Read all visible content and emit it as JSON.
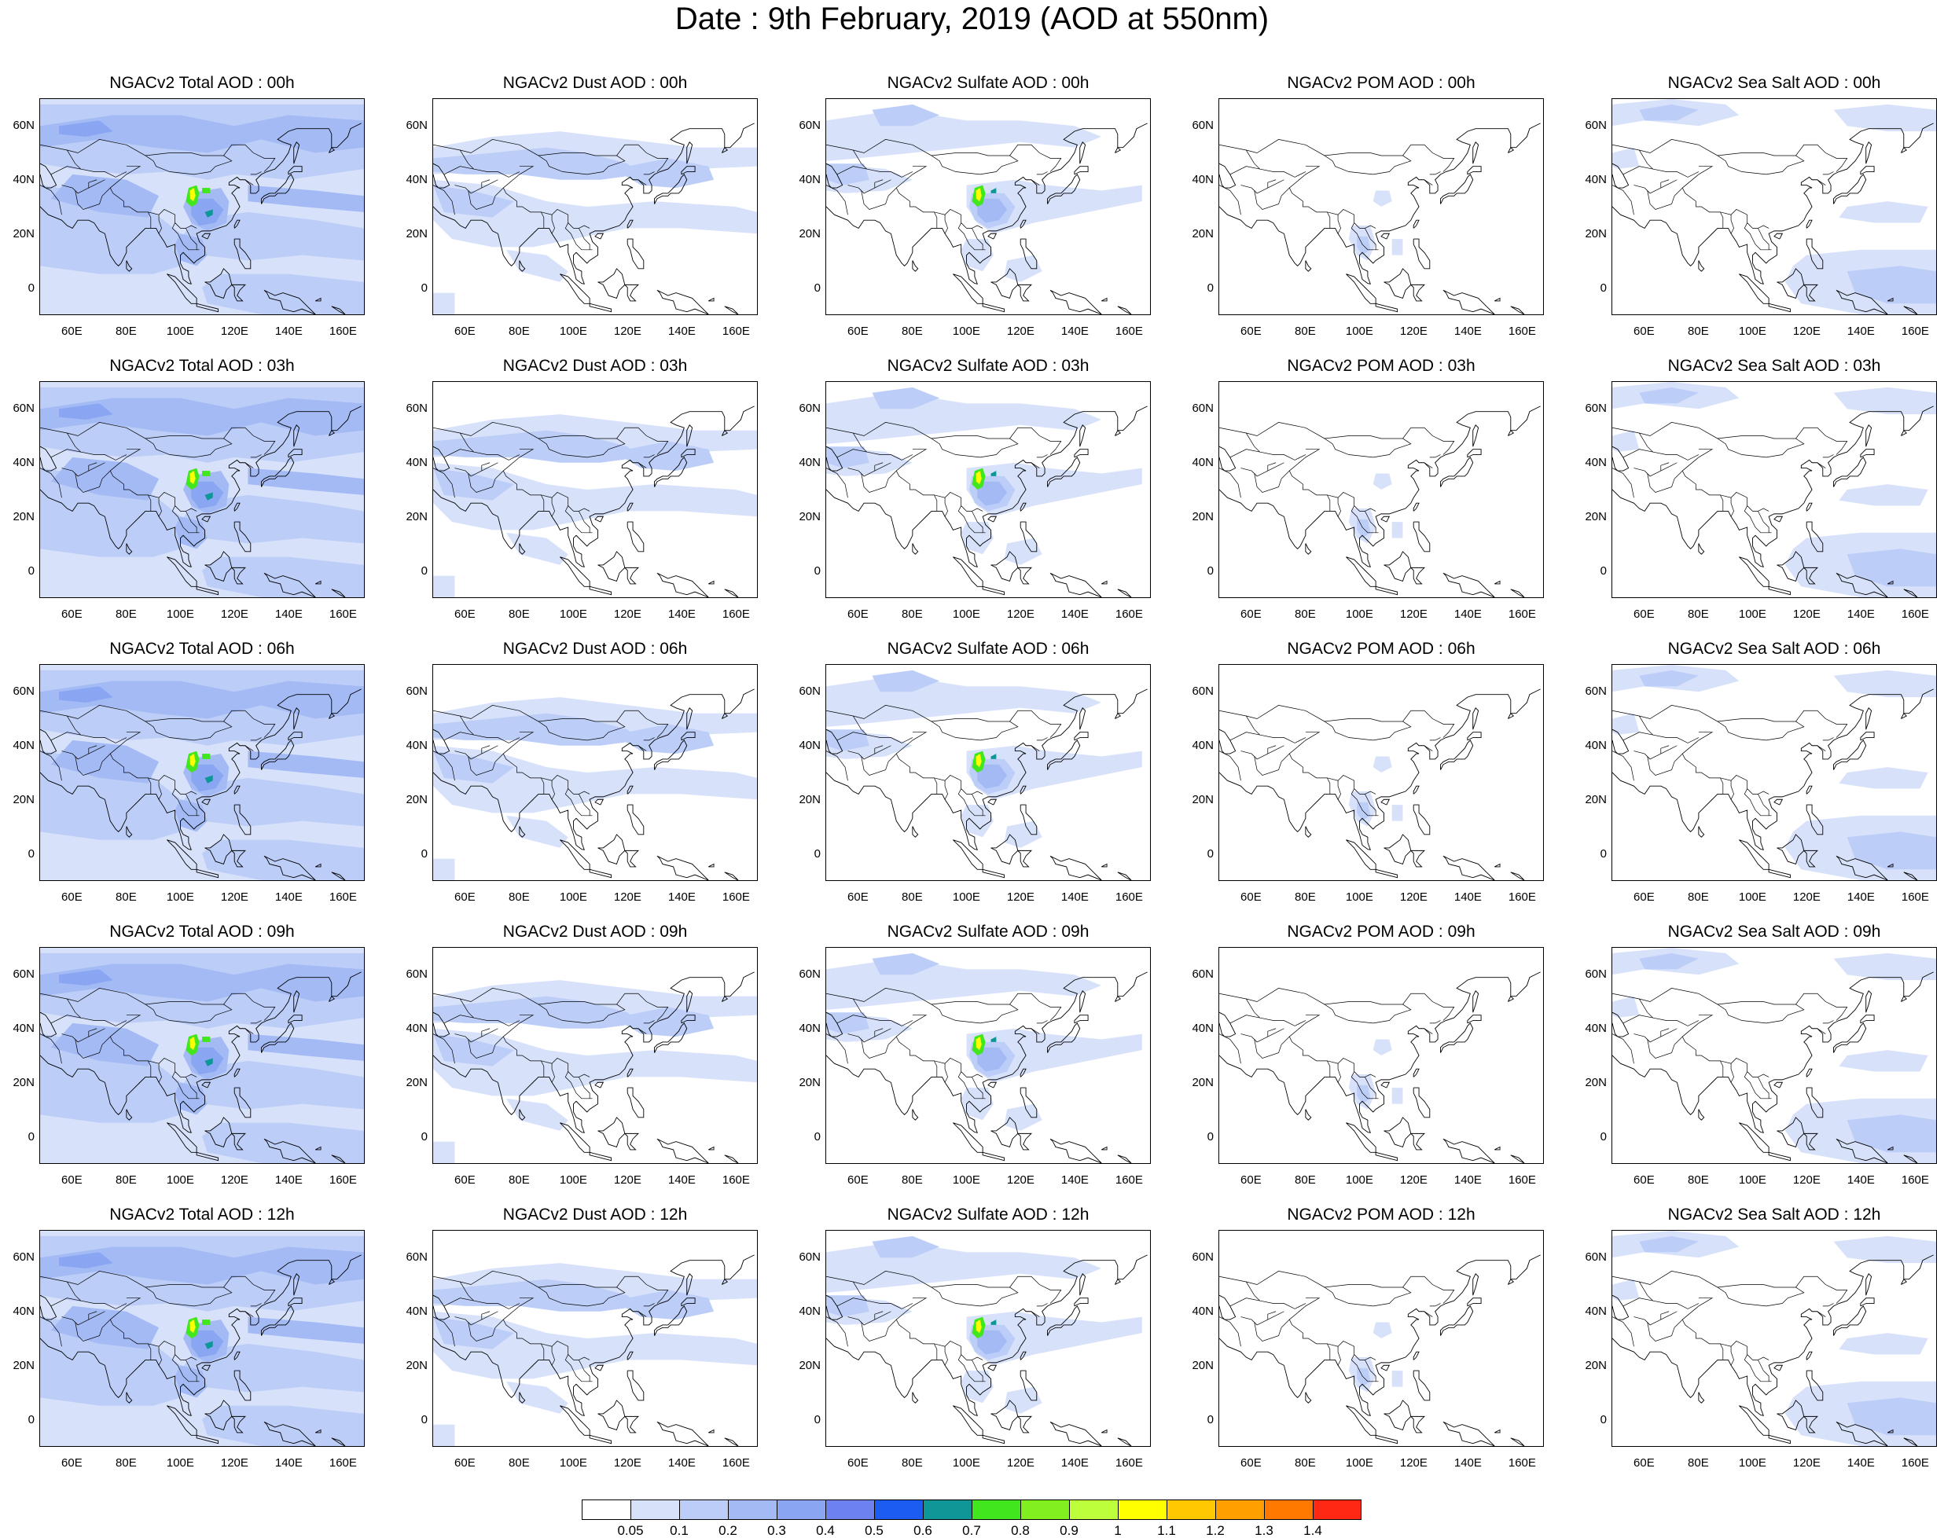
{
  "title": "Date : 9th February, 2019 (AOD at 550nm)",
  "panel_titles": [
    [
      "NGACv2 Total AOD : 00h",
      "NGACv2 Dust AOD : 00h",
      "NGACv2 Sulfate AOD : 00h",
      "NGACv2 POM AOD : 00h",
      "NGACv2 Sea Salt AOD : 00h"
    ],
    [
      "NGACv2 Total AOD : 03h",
      "NGACv2 Dust AOD : 03h",
      "NGACv2 Sulfate AOD : 03h",
      "NGACv2 POM AOD : 03h",
      "NGACv2 Sea Salt AOD : 03h"
    ],
    [
      "NGACv2 Total AOD : 06h",
      "NGACv2 Dust AOD : 06h",
      "NGACv2 Sulfate AOD : 06h",
      "NGACv2 POM AOD : 06h",
      "NGACv2 Sea Salt AOD : 06h"
    ],
    [
      "NGACv2 Total AOD : 09h",
      "NGACv2 Dust AOD : 09h",
      "NGACv2 Sulfate AOD : 09h",
      "NGACv2 POM AOD : 09h",
      "NGACv2 Sea Salt  AOD : 09h"
    ],
    [
      "NGACv2 Total AOD  : 12h",
      "NGACv2 Dust AOD : 12h",
      "NGACv2 Sulfate AOD : 12h",
      "NGACv2 POM  AOD : 12h",
      "NGACv2 Sea Salt  AOD : 12h"
    ]
  ],
  "lat_ticks": [
    "60N",
    "40N",
    "20N",
    "0"
  ],
  "lon_ticks": [
    "60E",
    "80E",
    "100E",
    "120E",
    "140E",
    "160E"
  ],
  "map_extent": {
    "lon_min": 48,
    "lon_max": 168,
    "lat_min": -10,
    "lat_max": 70
  },
  "colorbar": {
    "colors": [
      "#ffffff",
      "#d7e1fa",
      "#bccdf8",
      "#a3baf5",
      "#8aa5f2",
      "#6d82ee",
      "#1c5cf0",
      "#0f9696",
      "#41e61e",
      "#82f01e",
      "#beff3c",
      "#ffff00",
      "#ffc800",
      "#ffa000",
      "#ff7800",
      "#ff2814"
    ],
    "labels": [
      "0.05",
      "0.1",
      "0.2",
      "0.3",
      "0.4",
      "0.5",
      "0.6",
      "0.7",
      "0.8",
      "0.9",
      "1",
      "1.1",
      "1.2",
      "1.3",
      "1.4"
    ]
  },
  "field_colors": {
    "light": "#d7e1fa",
    "mid": "#bccdf8",
    "blue": "#a3baf5",
    "dark": "#8aa5f2",
    "hot_green": "#41e61e",
    "hot_yellow": "#ffff00",
    "hot_teal": "#0f9696"
  },
  "coast_color": "#000000"
}
